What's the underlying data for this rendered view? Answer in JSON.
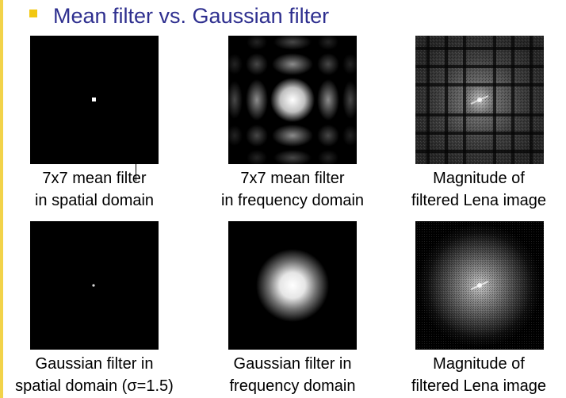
{
  "slide": {
    "title": "Mean filter vs. Gaussian filter",
    "panels": [
      {
        "caption_line1": "7x7 mean filter",
        "caption_line2": "in spatial domain"
      },
      {
        "caption_line1": "7x7 mean filter",
        "caption_line2": "in frequency domain"
      },
      {
        "caption_line1": "Magnitude of",
        "caption_line2": "filtered Lena image"
      },
      {
        "caption_line1": "Gaussian filter in",
        "caption_line2": "spatial domain (σ=1.5)"
      },
      {
        "caption_line1": "Gaussian filter in",
        "caption_line2": "frequency domain"
      },
      {
        "caption_line1": "Magnitude of",
        "caption_line2": "filtered Lena image"
      }
    ]
  },
  "colors": {
    "title": "#2e2f8f",
    "bullet": "#f2c811",
    "accent_bar": "#f2d34a"
  }
}
